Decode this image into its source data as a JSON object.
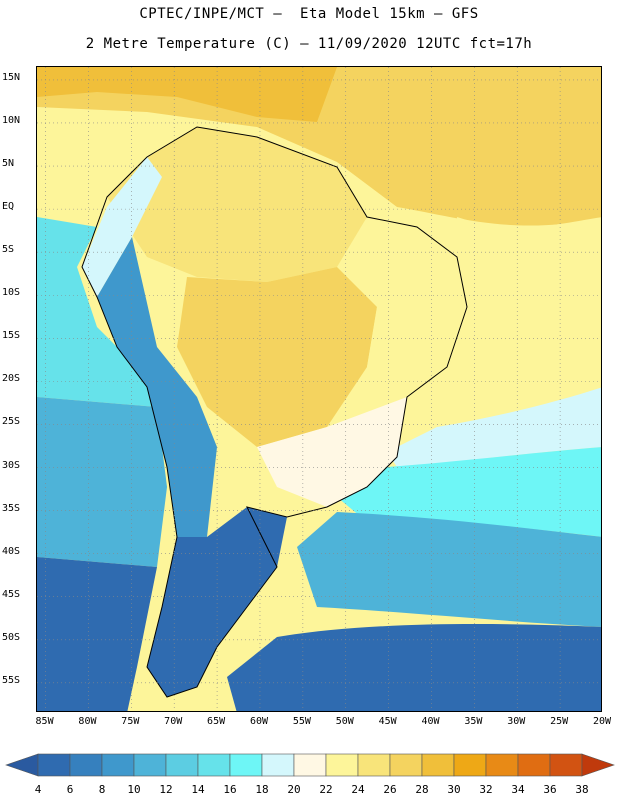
{
  "title_line1": "CPTEC/INPE/MCT –  Eta Model 15km – GFS",
  "title_line2": "2 Metre Temperature (C) – 11/09/2020 12UTC fct=17h",
  "latitude_labels": [
    "15N",
    "10N",
    "5N",
    "EQ",
    "5S",
    "10S",
    "15S",
    "20S",
    "25S",
    "30S",
    "35S",
    "40S",
    "45S",
    "50S",
    "55S"
  ],
  "latitude_values": [
    15,
    10,
    5,
    0,
    -5,
    -10,
    -15,
    -20,
    -25,
    -30,
    -35,
    -40,
    -45,
    -50,
    -55
  ],
  "longitude_labels": [
    "85W",
    "80W",
    "75W",
    "70W",
    "65W",
    "60W",
    "55W",
    "50W",
    "45W",
    "40W",
    "35W",
    "30W",
    "25W",
    "20W"
  ],
  "longitude_values": [
    -85,
    -80,
    -75,
    -70,
    -65,
    -60,
    -55,
    -50,
    -45,
    -40,
    -35,
    -30,
    -25,
    -20
  ],
  "map_extent": {
    "lon_min": -86,
    "lon_max": -20,
    "lat_min": -58.5,
    "lat_max": 16.5
  },
  "colorbar": {
    "labels": [
      "4",
      "6",
      "8",
      "10",
      "12",
      "14",
      "16",
      "18",
      "20",
      "22",
      "24",
      "26",
      "28",
      "30",
      "32",
      "34",
      "36",
      "38"
    ],
    "colors": [
      "#2a5aa0",
      "#2f6bb0",
      "#3680be",
      "#3f98cc",
      "#4eb3d8",
      "#5ccde2",
      "#66e2ea",
      "#6ef6f6",
      "#d4f7fc",
      "#fff8e4",
      "#fdf59a",
      "#f8e47a",
      "#f4d35f",
      "#f0bf3a",
      "#eea816",
      "#e88a16",
      "#e06d12",
      "#d25312",
      "#c03a0c"
    ]
  },
  "regions": [
    {
      "name": "atlantic-north",
      "color": "#f4d35f"
    },
    {
      "name": "caribbean",
      "color": "#f0bf3a"
    },
    {
      "name": "atlantic-tropical",
      "color": "#fdf59a"
    },
    {
      "name": "atlantic-subtropical",
      "color": "#d4f7fc"
    },
    {
      "name": "atlantic-temperate",
      "color": "#6ef6f6"
    },
    {
      "name": "atlantic-south",
      "color": "#4eb3d8"
    },
    {
      "name": "atlantic-deep-south",
      "color": "#2f6bb0"
    },
    {
      "name": "pacific-equatorial",
      "color": "#66e2ea"
    },
    {
      "name": "pacific-south",
      "color": "#4eb3d8"
    },
    {
      "name": "pacific-deep-south",
      "color": "#2f6bb0"
    },
    {
      "name": "amazon",
      "color": "#f8e47a"
    },
    {
      "name": "brazil-center",
      "color": "#f4d35f"
    },
    {
      "name": "brazil-northeast",
      "color": "#fdf59a"
    },
    {
      "name": "brazil-south",
      "color": "#fff8e4"
    },
    {
      "name": "andes-north",
      "color": "#d4f7fc"
    },
    {
      "name": "andes-central",
      "color": "#3f98cc"
    },
    {
      "name": "patagonia",
      "color": "#2f6bb0"
    }
  ]
}
